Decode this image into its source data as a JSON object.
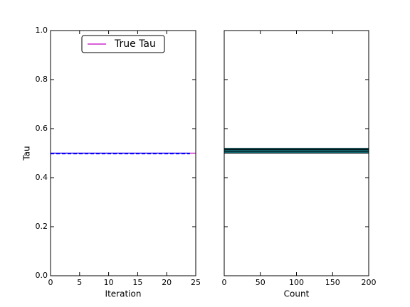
{
  "chart_data": [
    {
      "type": "line",
      "xlabel": "Iteration",
      "ylabel": "Tau",
      "xlim": [
        0,
        25
      ],
      "xticks": [
        0,
        5,
        10,
        15,
        20,
        25
      ],
      "ylim": [
        0,
        1
      ],
      "yticks": [
        {
          "value": 0,
          "label": "0.0"
        },
        0.2,
        0.4,
        0.6,
        0.8,
        {
          "value": 1,
          "label": "1.0"
        }
      ],
      "legend": "upper center",
      "series": [
        {
          "color": "#0000ff",
          "dash": true,
          "x": [
            0,
            1,
            2,
            3,
            4,
            5,
            6,
            7,
            8,
            9,
            10,
            11,
            12,
            13,
            14,
            15,
            16,
            17,
            18,
            19,
            20,
            21,
            22,
            23,
            24
          ],
          "values": [
            0.497,
            0.497,
            0.497,
            0.497,
            0.497,
            0.497,
            0.497,
            0.497,
            0.497,
            0.497,
            0.497,
            0.497,
            0.497,
            0.497,
            0.497,
            0.497,
            0.497,
            0.497,
            0.497,
            0.497,
            0.497,
            0.497,
            0.497,
            0.497,
            0.497
          ]
        },
        {
          "name": "True Tau",
          "color": "#bf00bf",
          "x": [
            0,
            25
          ],
          "values": [
            0.5,
            0.5
          ]
        },
        {
          "color": "#0000ff",
          "x": [
            0,
            1,
            2,
            3,
            4,
            5,
            6,
            7,
            8,
            9,
            10,
            11,
            12,
            13,
            14,
            15,
            16,
            17,
            18,
            19,
            20,
            21,
            22,
            23,
            24
          ],
          "values": [
            0.5,
            0.5,
            0.5,
            0.5,
            0.5,
            0.5,
            0.5,
            0.5,
            0.5,
            0.5,
            0.5,
            0.5,
            0.5,
            0.5,
            0.5,
            0.5,
            0.5,
            0.5,
            0.5,
            0.5,
            0.5,
            0.5,
            0.5,
            0.5,
            0.5
          ]
        }
      ]
    },
    {
      "type": "histogram",
      "orientation": "horizontal",
      "xlabel": "Count",
      "xlim": [
        0,
        200
      ],
      "xticks": [
        0,
        50,
        100,
        150,
        200
      ],
      "ylim": [
        0,
        1
      ],
      "yticks": [
        0,
        0.2,
        0.4,
        0.6,
        0.8,
        1
      ],
      "bins": [
        0.5,
        0.505,
        0.51,
        0.515,
        0.52
      ],
      "values": [
        200,
        200,
        200,
        200
      ],
      "color": "#1fb8c8"
    }
  ]
}
